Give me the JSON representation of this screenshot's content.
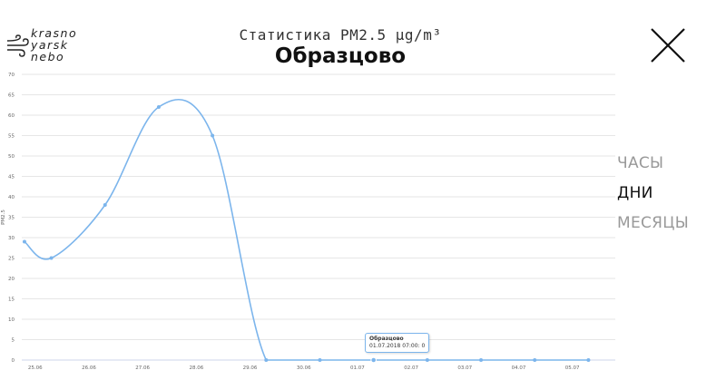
{
  "logo": {
    "lines": [
      "krasno",
      "yarsk",
      "nebo"
    ]
  },
  "header": {
    "title": "Статистика PM2.5 µg/m³",
    "station": "Образцово"
  },
  "close_icon": "close-icon",
  "range_selector": {
    "items": [
      "ЧАСЫ",
      "ДНИ",
      "МЕСЯЦЫ"
    ],
    "active_index": 1
  },
  "tooltip": {
    "title": "Образцово",
    "text": "01.07.2018 07:00: 0"
  },
  "colors": {
    "series": "#7cb5ec",
    "grid": "#e6e6e6",
    "axis_text": "#666666"
  },
  "chart_data": {
    "type": "line",
    "ylabel": "PM2.5",
    "ylim": [
      0,
      70
    ],
    "yticks": [
      0,
      5,
      10,
      15,
      20,
      25,
      30,
      35,
      40,
      45,
      50,
      55,
      60,
      65,
      70
    ],
    "xlim": [
      24.75,
      35.8
    ],
    "x_ticks": [
      {
        "label": "25.06",
        "x": 25
      },
      {
        "label": "26.06",
        "x": 26
      },
      {
        "label": "27.06",
        "x": 27
      },
      {
        "label": "28.06",
        "x": 28
      },
      {
        "label": "29.06",
        "x": 29
      },
      {
        "label": "30.06",
        "x": 30
      },
      {
        "label": "01.07",
        "x": 31
      },
      {
        "label": "02.07",
        "x": 32
      },
      {
        "label": "03.07",
        "x": 33
      },
      {
        "label": "04.07",
        "x": 34
      },
      {
        "label": "05.07",
        "x": 35
      }
    ],
    "series": [
      {
        "points": [
          {
            "x": 24.8,
            "y": 29
          },
          {
            "x": 25.3,
            "y": 25
          },
          {
            "x": 26.3,
            "y": 38
          },
          {
            "x": 27.3,
            "y": 62
          },
          {
            "x": 28.3,
            "y": 55
          },
          {
            "x": 29.3,
            "y": 0
          },
          {
            "x": 30.3,
            "y": 0
          },
          {
            "x": 31.3,
            "y": 0
          },
          {
            "x": 32.3,
            "y": 0
          },
          {
            "x": 33.3,
            "y": 0
          },
          {
            "x": 34.3,
            "y": 0
          },
          {
            "x": 35.3,
            "y": 0
          }
        ]
      }
    ]
  }
}
